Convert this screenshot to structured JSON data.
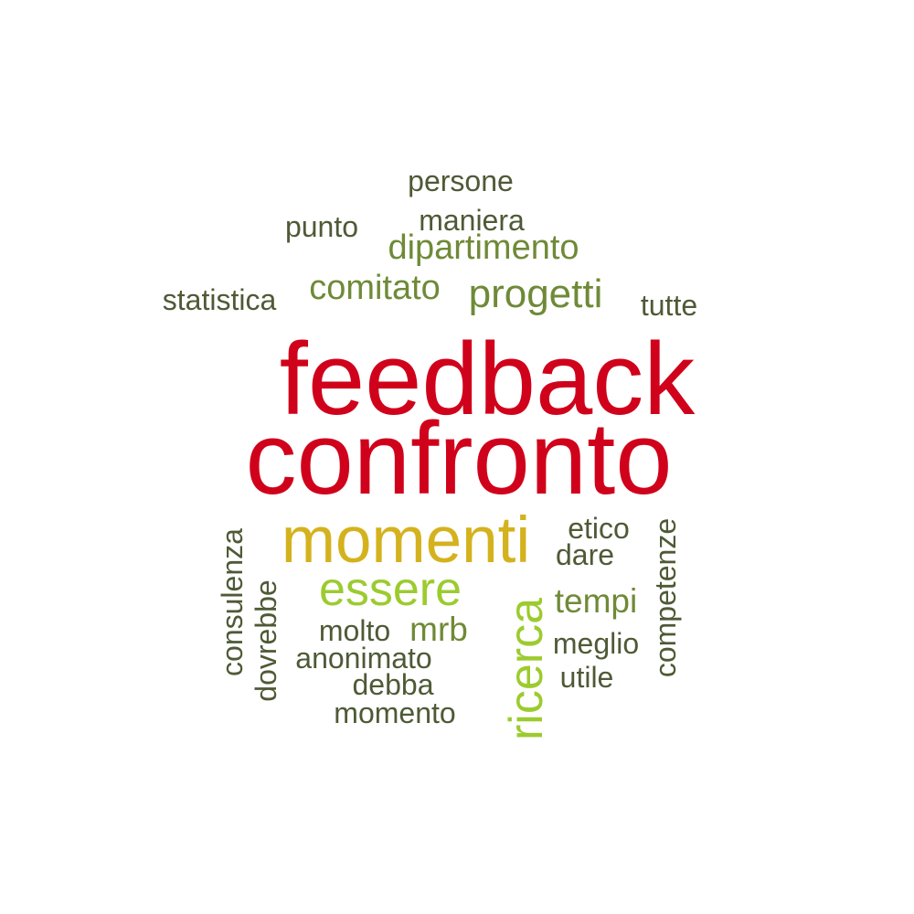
{
  "colors": {
    "red": "#d0021b",
    "gold": "#d4b21e",
    "lime": "#9ccb2f",
    "olive": "#6f8a37",
    "dark_olive": "#4e5a36"
  },
  "words": {
    "feedback": "feedback",
    "confronto": "confronto",
    "momenti": "momenti",
    "essere": "essere",
    "ricerca": "ricerca",
    "progetti": "progetti",
    "dipartimento": "dipartimento",
    "comitato": "comitato",
    "persone": "persone",
    "maniera": "maniera",
    "punto": "punto",
    "statistica": "statistica",
    "tutte": "tutte",
    "etico": "etico",
    "dare": "dare",
    "tempi": "tempi",
    "meglio": "meglio",
    "utile": "utile",
    "competenze": "competenze",
    "consulenza": "consulenza",
    "dovrebbe": "dovrebbe",
    "molto": "molto",
    "mrb": "mrb",
    "anonimato": "anonimato",
    "debba": "debba",
    "momento": "momento"
  }
}
